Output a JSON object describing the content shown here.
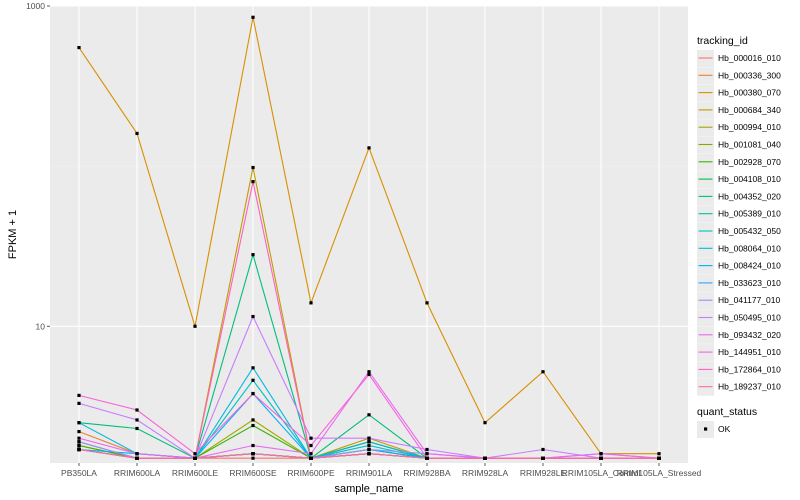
{
  "chart_data": {
    "type": "line",
    "xlabel": "sample_name",
    "ylabel": "FPKM + 1",
    "y_scale": "log10",
    "ylim": [
      1.4,
      1000
    ],
    "yticks": [
      10,
      1000
    ],
    "grid": true,
    "legend_position": "right",
    "categories": [
      "PB350LA",
      "RRIM600LA",
      "RRIM600LE",
      "RRIM600SE",
      "RRIM600PE",
      "RRIM901LA",
      "RRIM928BA",
      "RRIM928LA",
      "RRIM928LE",
      "RRIM105LA_Control",
      "RRIM105LA_Stressed"
    ],
    "legend_title": "tracking_id",
    "series": [
      {
        "name": "Hb_000016_010",
        "color": "#F8766D",
        "values": [
          1.8,
          1.5,
          1.5,
          1.5,
          1.5,
          1.6,
          1.5,
          1.5,
          1.5,
          1.5,
          1.5
        ]
      },
      {
        "name": "Hb_000336_300",
        "color": "#EA8331",
        "values": [
          2.2,
          1.6,
          1.5,
          1.6,
          1.5,
          1.7,
          1.5,
          1.5,
          1.5,
          1.5,
          1.5
        ]
      },
      {
        "name": "Hb_000380_070",
        "color": "#D89000",
        "values": [
          550,
          160,
          10,
          850,
          14,
          130,
          14,
          2.5,
          5.2,
          1.6,
          1.6
        ]
      },
      {
        "name": "Hb_000684_340",
        "color": "#C09B00",
        "values": [
          1.9,
          1.5,
          1.5,
          98,
          1.5,
          2.0,
          1.5,
          1.5,
          1.5,
          1.5,
          1.5
        ]
      },
      {
        "name": "Hb_000994_010",
        "color": "#A3A500",
        "values": [
          1.8,
          1.5,
          1.5,
          2.6,
          1.5,
          1.9,
          1.5,
          1.5,
          1.5,
          1.5,
          1.5
        ]
      },
      {
        "name": "Hb_001081_040",
        "color": "#7CAE00",
        "values": [
          1.7,
          1.5,
          1.5,
          1.6,
          1.5,
          1.7,
          1.5,
          1.5,
          1.5,
          1.5,
          1.5
        ]
      },
      {
        "name": "Hb_002928_070",
        "color": "#39B600",
        "values": [
          1.8,
          1.5,
          1.5,
          2.4,
          1.5,
          1.9,
          1.5,
          1.5,
          1.5,
          1.5,
          1.5
        ]
      },
      {
        "name": "Hb_004108_010",
        "color": "#00BB4E",
        "values": [
          1.7,
          1.5,
          1.5,
          1.6,
          1.5,
          1.6,
          1.5,
          1.5,
          1.5,
          1.5,
          1.5
        ]
      },
      {
        "name": "Hb_004352_020",
        "color": "#00BF7D",
        "values": [
          2.5,
          2.3,
          1.5,
          28,
          1.5,
          2.8,
          1.5,
          1.5,
          1.5,
          1.5,
          1.5
        ]
      },
      {
        "name": "Hb_005389_010",
        "color": "#00C1A3",
        "values": [
          1.7,
          1.5,
          1.5,
          1.6,
          1.5,
          1.6,
          1.5,
          1.5,
          1.5,
          1.5,
          1.5
        ]
      },
      {
        "name": "Hb_005432_050",
        "color": "#00BFC4",
        "values": [
          1.7,
          1.5,
          1.5,
          4.6,
          1.5,
          1.8,
          1.5,
          1.5,
          1.5,
          1.5,
          1.5
        ]
      },
      {
        "name": "Hb_008064_010",
        "color": "#00BAE0",
        "values": [
          2.5,
          1.6,
          1.5,
          5.5,
          1.5,
          1.9,
          1.5,
          1.5,
          1.5,
          1.5,
          1.5
        ]
      },
      {
        "name": "Hb_008424_010",
        "color": "#00B0F6",
        "values": [
          1.7,
          1.6,
          1.5,
          3.8,
          1.5,
          1.7,
          1.5,
          1.5,
          1.5,
          1.5,
          1.5
        ]
      },
      {
        "name": "Hb_033623_010",
        "color": "#35A2FF",
        "values": [
          1.7,
          1.5,
          1.5,
          1.6,
          1.5,
          1.6,
          1.5,
          1.5,
          1.5,
          1.5,
          1.5
        ]
      },
      {
        "name": "Hb_041177_010",
        "color": "#9590FF",
        "values": [
          1.9,
          1.5,
          1.5,
          1.6,
          1.5,
          1.7,
          1.6,
          1.5,
          1.5,
          1.6,
          1.5
        ]
      },
      {
        "name": "Hb_050495_010",
        "color": "#C77CFF",
        "values": [
          3.3,
          2.6,
          1.5,
          11.5,
          2.0,
          2.0,
          1.7,
          1.5,
          1.7,
          1.5,
          1.5
        ]
      },
      {
        "name": "Hb_093432_020",
        "color": "#E76BF3",
        "values": [
          2.0,
          1.6,
          1.5,
          1.8,
          1.6,
          5.2,
          1.6,
          1.5,
          1.5,
          1.6,
          1.5
        ]
      },
      {
        "name": "Hb_144951_010",
        "color": "#FA62DB",
        "values": [
          3.7,
          3.0,
          1.6,
          3.8,
          1.8,
          5.0,
          1.5,
          1.5,
          1.5,
          1.5,
          1.5
        ]
      },
      {
        "name": "Hb_172864_010",
        "color": "#FF62BC",
        "values": [
          1.7,
          1.5,
          1.5,
          80,
          1.5,
          1.6,
          1.5,
          1.5,
          1.5,
          1.5,
          1.5
        ]
      },
      {
        "name": "Hb_189237_010",
        "color": "#FF6C91",
        "values": [
          1.7,
          1.5,
          1.5,
          1.6,
          1.5,
          1.6,
          1.5,
          1.5,
          1.5,
          1.5,
          1.5
        ]
      }
    ],
    "shape_legend": {
      "title": "quant_status",
      "items": [
        "OK"
      ]
    },
    "colors": {
      "panel_bg": "#EBEBEB",
      "grid_major": "#FFFFFF",
      "grid_minor": "#F5F5F5",
      "point": "#000000"
    }
  }
}
